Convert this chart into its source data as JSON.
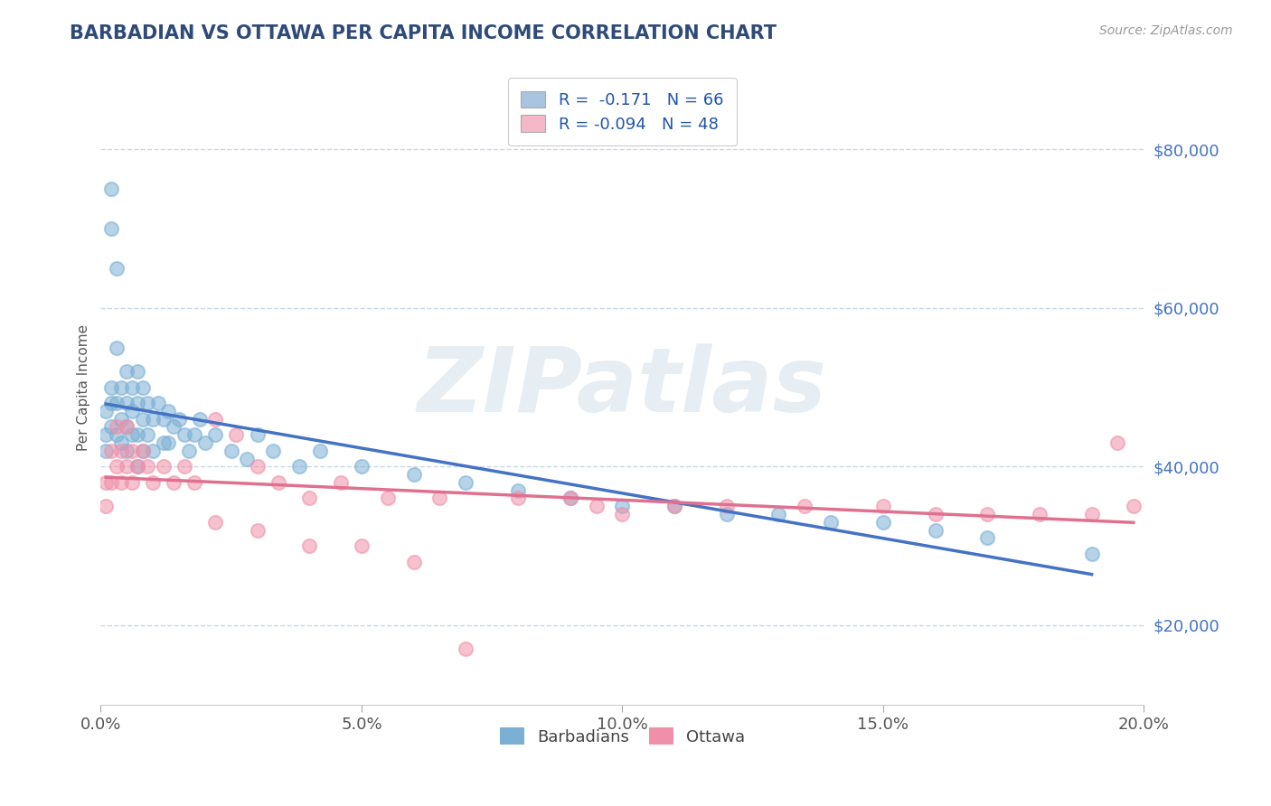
{
  "title": "BARBADIAN VS OTTAWA PER CAPITA INCOME CORRELATION CHART",
  "source": "Source: ZipAtlas.com",
  "ylabel_label": "Per Capita Income",
  "xlim": [
    0.0,
    0.2
  ],
  "ylim": [
    10000,
    90000
  ],
  "yticks": [
    20000,
    40000,
    60000,
    80000
  ],
  "ytick_labels": [
    "$20,000",
    "$40,000",
    "$60,000",
    "$80,000"
  ],
  "xticks": [
    0.0,
    0.05,
    0.1,
    0.15,
    0.2
  ],
  "xtick_labels": [
    "0.0%",
    "5.0%",
    "10.0%",
    "15.0%",
    "20.0%"
  ],
  "title_color": "#2E4A7A",
  "ytick_color": "#4472c4",
  "background_color": "#ffffff",
  "grid_color": "#c8d8e8",
  "watermark": "ZIPatlas",
  "legend_label1": "R =  -0.171   N = 66",
  "legend_label2": "R = -0.094   N = 48",
  "legend_color1": "#a8c4e0",
  "legend_color2": "#f4b8c8",
  "barbadian_color": "#7bafd4",
  "ottawa_color": "#f090a8",
  "trendline1_color": "#4472c4",
  "trendline2_color": "#e07090",
  "barbadian_x": [
    0.001,
    0.001,
    0.001,
    0.002,
    0.002,
    0.002,
    0.002,
    0.002,
    0.003,
    0.003,
    0.003,
    0.003,
    0.004,
    0.004,
    0.004,
    0.005,
    0.005,
    0.005,
    0.005,
    0.006,
    0.006,
    0.006,
    0.007,
    0.007,
    0.007,
    0.007,
    0.008,
    0.008,
    0.008,
    0.009,
    0.009,
    0.01,
    0.01,
    0.011,
    0.012,
    0.012,
    0.013,
    0.013,
    0.014,
    0.015,
    0.016,
    0.017,
    0.018,
    0.019,
    0.02,
    0.022,
    0.025,
    0.028,
    0.03,
    0.033,
    0.038,
    0.042,
    0.05,
    0.06,
    0.07,
    0.08,
    0.09,
    0.1,
    0.11,
    0.12,
    0.13,
    0.14,
    0.15,
    0.16,
    0.17,
    0.19
  ],
  "barbadian_y": [
    47000,
    44000,
    42000,
    75000,
    70000,
    50000,
    48000,
    45000,
    65000,
    55000,
    48000,
    44000,
    50000,
    46000,
    43000,
    52000,
    48000,
    45000,
    42000,
    50000,
    47000,
    44000,
    52000,
    48000,
    44000,
    40000,
    50000,
    46000,
    42000,
    48000,
    44000,
    46000,
    42000,
    48000,
    46000,
    43000,
    47000,
    43000,
    45000,
    46000,
    44000,
    42000,
    44000,
    46000,
    43000,
    44000,
    42000,
    41000,
    44000,
    42000,
    40000,
    42000,
    40000,
    39000,
    38000,
    37000,
    36000,
    35000,
    35000,
    34000,
    34000,
    33000,
    33000,
    32000,
    31000,
    29000
  ],
  "ottawa_x": [
    0.001,
    0.001,
    0.002,
    0.002,
    0.003,
    0.003,
    0.004,
    0.004,
    0.005,
    0.005,
    0.006,
    0.006,
    0.007,
    0.008,
    0.009,
    0.01,
    0.012,
    0.014,
    0.016,
    0.018,
    0.022,
    0.026,
    0.03,
    0.034,
    0.04,
    0.046,
    0.055,
    0.065,
    0.08,
    0.095,
    0.11,
    0.12,
    0.135,
    0.15,
    0.16,
    0.17,
    0.18,
    0.19,
    0.195,
    0.198,
    0.022,
    0.03,
    0.04,
    0.05,
    0.06,
    0.07,
    0.09,
    0.1
  ],
  "ottawa_y": [
    38000,
    35000,
    42000,
    38000,
    45000,
    40000,
    42000,
    38000,
    45000,
    40000,
    42000,
    38000,
    40000,
    42000,
    40000,
    38000,
    40000,
    38000,
    40000,
    38000,
    46000,
    44000,
    40000,
    38000,
    36000,
    38000,
    36000,
    36000,
    36000,
    35000,
    35000,
    35000,
    35000,
    35000,
    34000,
    34000,
    34000,
    34000,
    43000,
    35000,
    33000,
    32000,
    30000,
    30000,
    28000,
    17000,
    36000,
    34000
  ]
}
